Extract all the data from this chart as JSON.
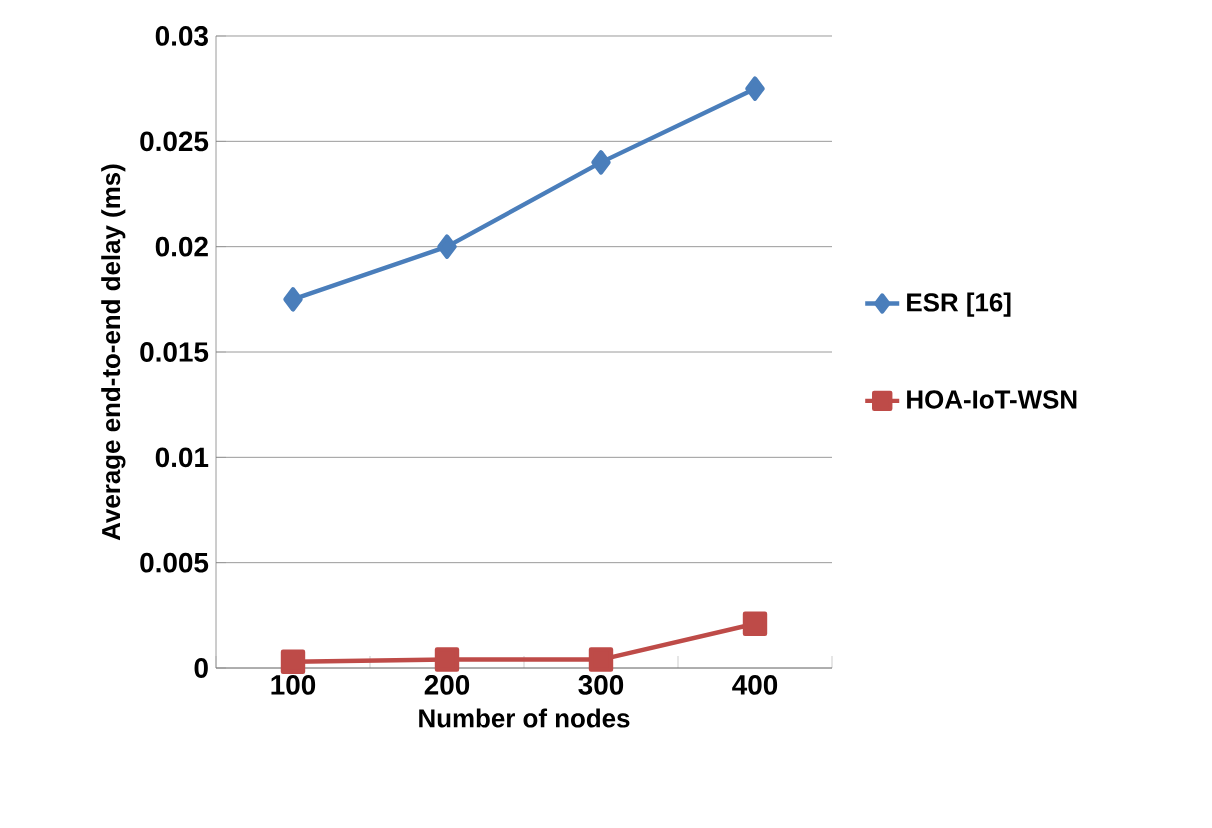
{
  "chart_data": {
    "type": "line",
    "xlabel": "Number of nodes",
    "ylabel": "Average end-to-end delay (ms)",
    "categories": [
      "100",
      "200",
      "300",
      "400"
    ],
    "series": [
      {
        "name": "ESR [16]",
        "color": "#4a7ebb",
        "marker": "diamond",
        "values": [
          0.0175,
          0.02,
          0.024,
          0.0275
        ]
      },
      {
        "name": "HOA-IoT-WSN",
        "color": "#be4b48",
        "marker": "square",
        "values": [
          0.0003,
          0.0004,
          0.0004,
          0.0021
        ]
      }
    ],
    "ylim": [
      0,
      0.03
    ],
    "yticks": [
      0,
      0.005,
      0.01,
      0.015,
      0.02,
      0.025,
      0.03
    ],
    "grid": "y",
    "legend": "right"
  }
}
